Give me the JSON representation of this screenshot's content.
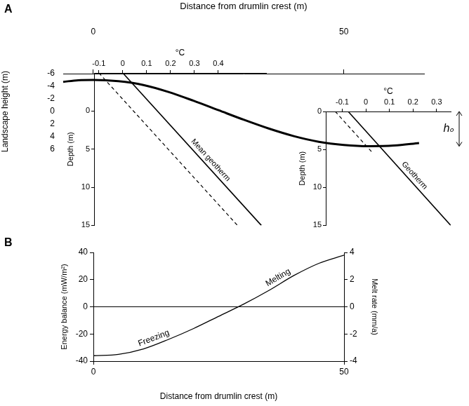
{
  "chart_data": [
    {
      "type": "line",
      "title": "A",
      "xlabel": "Distance from drumlin crest (m)",
      "ylabel": "Landscape height (m)",
      "x": [
        -6,
        -3,
        0,
        5,
        10,
        15,
        20,
        25,
        30,
        35,
        40,
        45,
        50,
        55,
        60,
        65
      ],
      "values": [
        -4.7,
        -4.95,
        -5,
        -4.8,
        -4.2,
        -3.1,
        -1.7,
        -0.2,
        1.3,
        2.7,
        3.9,
        4.8,
        5.3,
        5.5,
        5.4,
        5.0
      ],
      "color": "#000000",
      "xlim": [
        -6,
        66
      ],
      "xticks": [
        0,
        50
      ],
      "ylim": [
        -6,
        6
      ],
      "yticks": [
        -6,
        -4,
        -2,
        0,
        2,
        4,
        6
      ],
      "annotations": [
        "hₒ"
      ]
    },
    {
      "type": "line",
      "xlabel": "°C",
      "ylabel": "Depth (m)",
      "xlim": [
        -0.12,
        0.6
      ],
      "xticks": [
        -0.1,
        0,
        0.1,
        0.2,
        0.3,
        0.4
      ],
      "ylim": [
        -5,
        15
      ],
      "yticks": [
        0,
        5,
        10,
        15
      ],
      "series": [
        {
          "name": "Mean geotherm",
          "color": "#000000",
          "line_style": "solid",
          "x": [
            0,
            0.58
          ],
          "values": [
            -5,
            15
          ]
        },
        {
          "color": "#000000",
          "line_style": "dashed",
          "x": [
            -0.1,
            0.48
          ],
          "values": [
            -5,
            15
          ]
        }
      ]
    },
    {
      "type": "line",
      "xlabel": "°C",
      "ylabel": "Depth (m)",
      "xlim": [
        -0.17,
        0.36
      ],
      "xticks": [
        -0.1,
        0,
        0.1,
        0.2,
        0.3
      ],
      "ylim": [
        0,
        15
      ],
      "yticks": [
        0,
        5,
        10,
        15
      ],
      "series": [
        {
          "name": "Geotherm",
          "color": "#000000",
          "line_style": "solid",
          "x": [
            -0.075,
            0.36
          ],
          "values": [
            0,
            15
          ]
        },
        {
          "color": "#000000",
          "line_style": "dashed",
          "x": [
            -0.13,
            0.03
          ],
          "values": [
            0,
            5.5
          ]
        }
      ]
    },
    {
      "type": "line",
      "title": "B",
      "xlabel": "Distance from drumlin crest (m)",
      "ylabel": "Energy balance (mW/m²)",
      "y2label": "Melt rate (mm/a)",
      "x": [
        0,
        5,
        10,
        15,
        20,
        25,
        30,
        35,
        40,
        45,
        50
      ],
      "values": [
        -36,
        -35,
        -31,
        -24,
        -16,
        -7,
        2,
        12,
        23,
        32,
        38
      ],
      "color": "#000000",
      "xlim": [
        0,
        50
      ],
      "xticks": [
        0,
        50
      ],
      "ylim": [
        -40,
        40
      ],
      "yticks": [
        -40,
        -20,
        0,
        20,
        40
      ],
      "y2lim": [
        -4,
        4
      ],
      "y2ticks": [
        -4,
        -2,
        0,
        2,
        4
      ],
      "annotations": [
        "Freezing",
        "Melting"
      ]
    }
  ]
}
